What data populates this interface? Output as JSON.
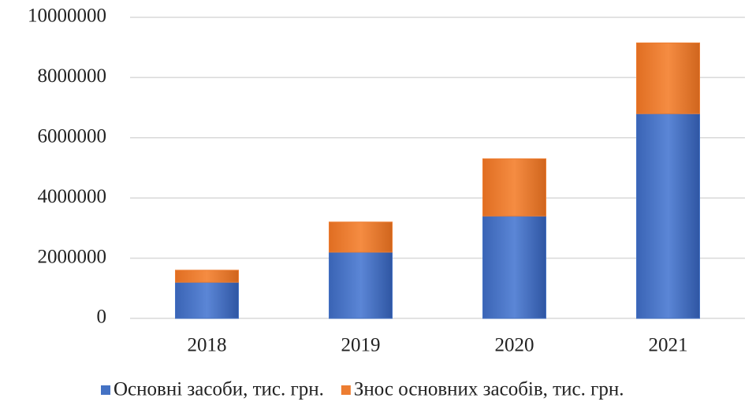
{
  "chart_data": {
    "type": "bar",
    "stacked": true,
    "categories": [
      "2018",
      "2019",
      "2020",
      "2021"
    ],
    "series": [
      {
        "name": "Основні засоби, тис. грн.",
        "color": "#4472c4",
        "values": [
          1200000,
          2200000,
          3400000,
          6800000
        ]
      },
      {
        "name": "Знос основних засобів, тис. грн.",
        "color": "#ed7d31",
        "values": [
          400000,
          1000000,
          1900000,
          2350000
        ]
      }
    ],
    "ylim": [
      0,
      10000000
    ],
    "yticks": [
      0,
      2000000,
      4000000,
      6000000,
      8000000,
      10000000
    ],
    "grid": true,
    "legend": "bottom"
  }
}
